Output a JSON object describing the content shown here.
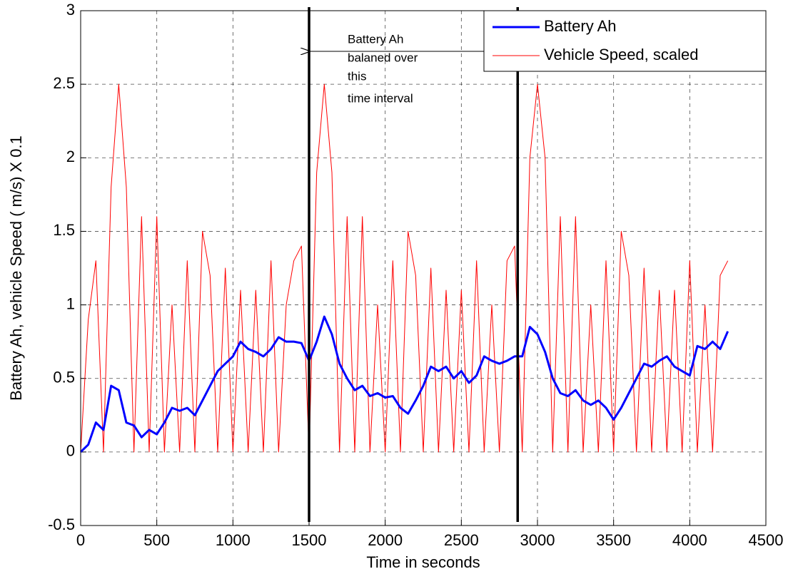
{
  "chart_data": {
    "type": "line",
    "xlabel": "Time in seconds",
    "ylabel": "Battery Ah, vehicle Speed ( m/s) X 0.1",
    "x": [
      0,
      50,
      100,
      150,
      200,
      250,
      300,
      350,
      400,
      450,
      500,
      550,
      600,
      650,
      700,
      750,
      800,
      850,
      900,
      950,
      1000,
      1050,
      1100,
      1150,
      1200,
      1250,
      1300,
      1350,
      1400,
      1450,
      1500,
      1550,
      1600,
      1650,
      1700,
      1750,
      1800,
      1850,
      1900,
      1950,
      2000,
      2050,
      2100,
      2150,
      2200,
      2250,
      2300,
      2350,
      2400,
      2450,
      2500,
      2550,
      2600,
      2650,
      2700,
      2750,
      2800,
      2850,
      2900,
      2950,
      3000,
      3050,
      3100,
      3150,
      3200,
      3250,
      3300,
      3350,
      3400,
      3450,
      3500,
      3550,
      3600,
      3650,
      3700,
      3750,
      3800,
      3850,
      3900,
      3950,
      4000,
      4050,
      4100,
      4150,
      4200,
      4250
    ],
    "series": [
      {
        "name": "Battery Ah",
        "color": "#0000ff",
        "width": 3,
        "values": [
          0,
          0.05,
          0.2,
          0.15,
          0.45,
          0.42,
          0.2,
          0.18,
          0.1,
          0.15,
          0.12,
          0.2,
          0.3,
          0.28,
          0.3,
          0.25,
          0.35,
          0.45,
          0.55,
          0.6,
          0.65,
          0.75,
          0.7,
          0.68,
          0.65,
          0.7,
          0.78,
          0.75,
          0.75,
          0.74,
          0.62,
          0.75,
          0.92,
          0.8,
          0.6,
          0.5,
          0.42,
          0.45,
          0.38,
          0.4,
          0.37,
          0.38,
          0.3,
          0.26,
          0.35,
          0.45,
          0.58,
          0.55,
          0.58,
          0.5,
          0.55,
          0.47,
          0.52,
          0.65,
          0.62,
          0.6,
          0.62,
          0.65,
          0.65,
          0.85,
          0.8,
          0.68,
          0.5,
          0.4,
          0.38,
          0.42,
          0.35,
          0.32,
          0.35,
          0.3,
          0.22,
          0.3,
          0.4,
          0.5,
          0.6,
          0.58,
          0.62,
          0.65,
          0.58,
          0.55,
          0.52,
          0.72,
          0.7,
          0.75,
          0.7,
          0.82
        ]
      },
      {
        "name": "Vehicle Speed, scaled",
        "color": "#ff0000",
        "width": 1,
        "values": [
          0,
          0.9,
          1.3,
          0,
          1.8,
          2.5,
          1.8,
          0,
          1.6,
          0,
          1.6,
          0,
          1.0,
          0,
          1.3,
          0,
          1.5,
          1.2,
          0,
          1.25,
          0,
          1.1,
          0,
          1.1,
          0,
          1.3,
          0,
          1.0,
          1.3,
          1.4,
          0,
          1.9,
          2.5,
          1.9,
          0,
          1.6,
          0,
          1.6,
          0,
          1.0,
          0,
          1.3,
          0,
          1.5,
          1.2,
          0,
          1.25,
          0,
          1.1,
          0,
          1.1,
          0,
          1.3,
          0,
          1.0,
          0,
          1.3,
          1.4,
          0,
          2.0,
          2.5,
          2.0,
          0,
          1.6,
          0,
          1.6,
          0,
          1.0,
          0,
          1.3,
          0,
          1.5,
          1.2,
          0,
          1.25,
          0,
          1.1,
          0,
          1.1,
          0,
          1.3,
          0,
          1.0,
          0,
          1.2,
          1.3
        ]
      }
    ],
    "vlines": [
      1500,
      2870
    ],
    "annotation": [
      "Battery Ah",
      "balaned over",
      "this",
      "time interval"
    ],
    "xlim": [
      0,
      4500
    ],
    "xticks": [
      0,
      500,
      1000,
      1500,
      2000,
      2500,
      3000,
      3500,
      4000,
      4500
    ],
    "ylim": [
      -0.5,
      3
    ],
    "yticks": [
      -0.5,
      0,
      0.5,
      1,
      1.5,
      2,
      2.5,
      3
    ],
    "grid": true,
    "legend": "upper right"
  }
}
